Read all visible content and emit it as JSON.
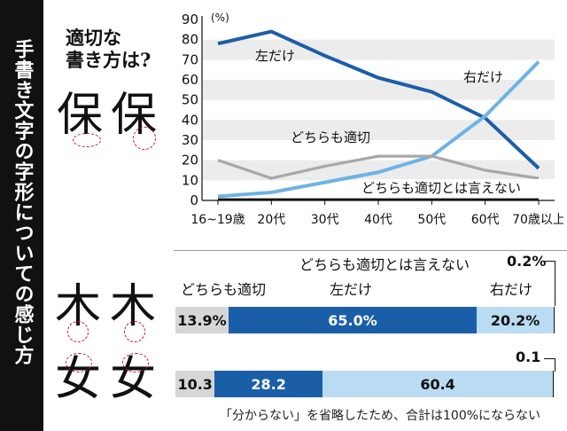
{
  "title": "手書き文字の字形についての感じ方",
  "question": [
    "適切な",
    "書き方は?"
  ],
  "chars": {
    "line": [
      "保",
      "保"
    ],
    "bar1": [
      "木",
      "木"
    ],
    "bar2": [
      "女",
      "女"
    ]
  },
  "chart_data": [
    {
      "type": "line",
      "x": [
        "16~19歳",
        "20代",
        "30代",
        "40代",
        "50代",
        "60代",
        "70歳以上"
      ],
      "ylim": [
        0,
        90
      ],
      "yticks": [
        0,
        10,
        20,
        30,
        40,
        50,
        60,
        70,
        80,
        90
      ],
      "yunit": "(%)",
      "series": [
        {
          "name": "左だけ",
          "color": "#1b5ea8",
          "values": [
            78,
            84,
            72,
            61,
            54,
            41,
            16
          ]
        },
        {
          "name": "右だけ",
          "color": "#6cb4e4",
          "values": [
            2,
            4,
            9,
            14,
            22,
            42,
            69
          ]
        },
        {
          "name": "どちらも適切",
          "color": "#a8a8a8",
          "values": [
            20,
            11,
            17,
            22,
            22,
            15,
            11
          ]
        },
        {
          "name": "どちらも適切とは言えない",
          "color": "#111111",
          "values": [
            0.5,
            0.5,
            0.5,
            0.5,
            0.5,
            0.5,
            0.5
          ]
        }
      ]
    },
    {
      "type": "bar",
      "orientation": "horizontal-stacked",
      "categories": [
        "木",
        "女"
      ],
      "series": [
        {
          "name": "どちらも適切",
          "color": "#d6d6d6",
          "values": [
            13.9,
            10.3
          ],
          "labels": [
            "13.9%",
            "10.3"
          ]
        },
        {
          "name": "左だけ",
          "color": "#1b5ea8",
          "values": [
            65.0,
            28.2
          ],
          "labels": [
            "65.0%",
            "28.2"
          ]
        },
        {
          "name": "右だけ",
          "color": "#b9dcf2",
          "values": [
            20.2,
            60.4
          ],
          "labels": [
            "20.2%",
            "60.4"
          ]
        },
        {
          "name": "どちらも適切とは言えない",
          "color": "#111111",
          "values": [
            0.2,
            0.1
          ],
          "labels": [
            "0.2%",
            "0.1"
          ]
        }
      ]
    }
  ],
  "legend": {
    "left_only": "左だけ",
    "right_only": "右だけ",
    "both": "どちらも適切",
    "neither": "どちらも適切とは言えない"
  },
  "note": "「分からない」を省略したため、合計は100%にならない"
}
